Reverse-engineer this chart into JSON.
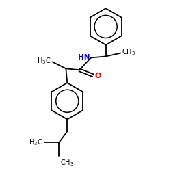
{
  "background_color": "#ffffff",
  "bond_color": "#000000",
  "N_color": "#0000cc",
  "O_color": "#ff0000",
  "figsize": [
    2.5,
    2.5
  ],
  "dpi": 100,
  "bond_lw": 1.3,
  "font_size": 7.0
}
